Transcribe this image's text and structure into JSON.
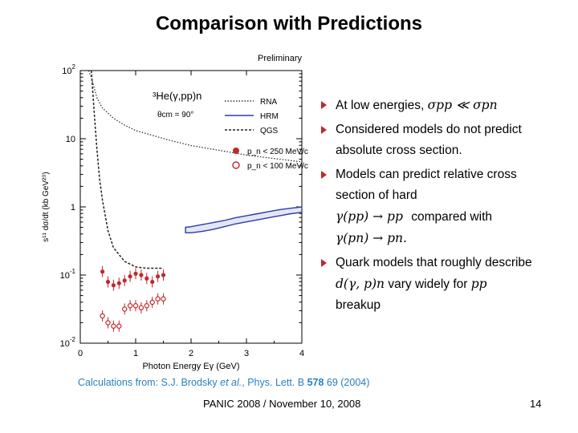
{
  "slide": {
    "title": "Comparison with Predictions",
    "citation": {
      "prefix": "Calculations from: S.J. Brodsky ",
      "etal": "et al.",
      "journal": ", Phys. Lett. B ",
      "volume": "578",
      "pages": " 69 (2004)"
    },
    "footer": "PANIC 2008 / November 10, 2008",
    "page_number": "14"
  },
  "bullets": {
    "b1": {
      "text": "At low energies,",
      "math": "σpp ≪ σpn"
    },
    "b2": {
      "text": "Considered models do not predict absolute cross section."
    },
    "b3": {
      "line1": "Models can predict relative cross section of hard",
      "math1": "γ(pp) → pp",
      "compared": "compared with",
      "math2": "γ(pn) → pn."
    },
    "b4": {
      "line1": "Quark models that roughly describe",
      "math": "d(γ, p)n",
      "mid": "vary widely for",
      "math2": "pp",
      "line2": "breakup"
    }
  },
  "chart_data": {
    "type": "line",
    "title": "Preliminary",
    "reaction_label": "³He(γ,pp)n",
    "angle_label": "θcm = 90°",
    "xlabel": "Photon Energy Eγ (GeV)",
    "ylabel": "s¹¹ dσ/dt (kb GeV²⁰)",
    "xlim": [
      0,
      4
    ],
    "ylim_log10": [
      -2,
      2
    ],
    "x_ticks": [
      "0",
      "1",
      "2",
      "3",
      "4"
    ],
    "y_ticks": [
      {
        "label": "10^2",
        "log10": 2
      },
      {
        "label": "10",
        "log10": 1
      },
      {
        "label": "1",
        "log10": 0
      },
      {
        "label": "10^-1",
        "log10": -1
      },
      {
        "label": "10^-2",
        "log10": -2
      }
    ],
    "legend": {
      "lines": [
        "RNA",
        "HRM",
        "QGS"
      ],
      "markers": [
        "p_n < 250 MeV/c",
        "p_n < 100 MeV/c"
      ]
    },
    "series": [
      {
        "name": "RNA",
        "style": "dotted",
        "x": [
          0.15,
          0.2,
          0.3,
          0.4,
          0.6,
          0.8,
          1.0,
          1.3,
          1.6,
          2.0,
          2.5,
          3.0,
          3.5,
          4.0
        ],
        "log10_y": [
          2.0,
          1.9,
          1.6,
          1.45,
          1.3,
          1.2,
          1.12,
          1.05,
          0.98,
          0.9,
          0.83,
          0.76,
          0.71,
          0.66
        ]
      },
      {
        "name": "QGS",
        "style": "dashed",
        "x": [
          0.2,
          0.25,
          0.3,
          0.35,
          0.4,
          0.5,
          0.6,
          0.8,
          1.0,
          1.2,
          1.4,
          1.5
        ],
        "log10_y": [
          2.0,
          1.4,
          0.85,
          0.4,
          0.1,
          -0.35,
          -0.6,
          -0.8,
          -0.88,
          -0.9,
          -0.9,
          -0.9
        ]
      },
      {
        "name": "HRM",
        "style": "band",
        "x": [
          1.9,
          2.0,
          2.2,
          2.4,
          2.6,
          2.8,
          3.0,
          3.2,
          3.4,
          3.6,
          3.8,
          4.0
        ],
        "log10_y_upper": [
          -0.3,
          -0.29,
          -0.26,
          -0.23,
          -0.2,
          -0.16,
          -0.13,
          -0.1,
          -0.07,
          -0.04,
          -0.02,
          0.0
        ],
        "log10_y_lower": [
          -0.38,
          -0.38,
          -0.36,
          -0.33,
          -0.29,
          -0.25,
          -0.22,
          -0.19,
          -0.16,
          -0.13,
          -0.1,
          -0.08
        ]
      },
      {
        "name": "p_n < 250 MeV/c",
        "style": "filled",
        "x": [
          0.4,
          0.5,
          0.6,
          0.7,
          0.8,
          0.9,
          1.0,
          1.1,
          1.2,
          1.3,
          1.4,
          1.5
        ],
        "log10_y": [
          -0.95,
          -1.1,
          -1.15,
          -1.12,
          -1.08,
          -1.02,
          -0.98,
          -1.0,
          -1.05,
          -1.1,
          -1.02,
          -1.0
        ]
      },
      {
        "name": "p_n < 100 MeV/c",
        "style": "open",
        "x": [
          0.4,
          0.5,
          0.6,
          0.7,
          0.8,
          0.9,
          1.0,
          1.1,
          1.2,
          1.3,
          1.4,
          1.5
        ],
        "log10_y": [
          -1.6,
          -1.7,
          -1.75,
          -1.75,
          -1.5,
          -1.45,
          -1.45,
          -1.48,
          -1.45,
          -1.4,
          -1.35,
          -1.35
        ]
      }
    ]
  },
  "colors": {
    "data": "#c0282c",
    "hrm": "#2c3e9e",
    "text_blue": "#2a7fc0",
    "arrow": "#c0282c"
  }
}
